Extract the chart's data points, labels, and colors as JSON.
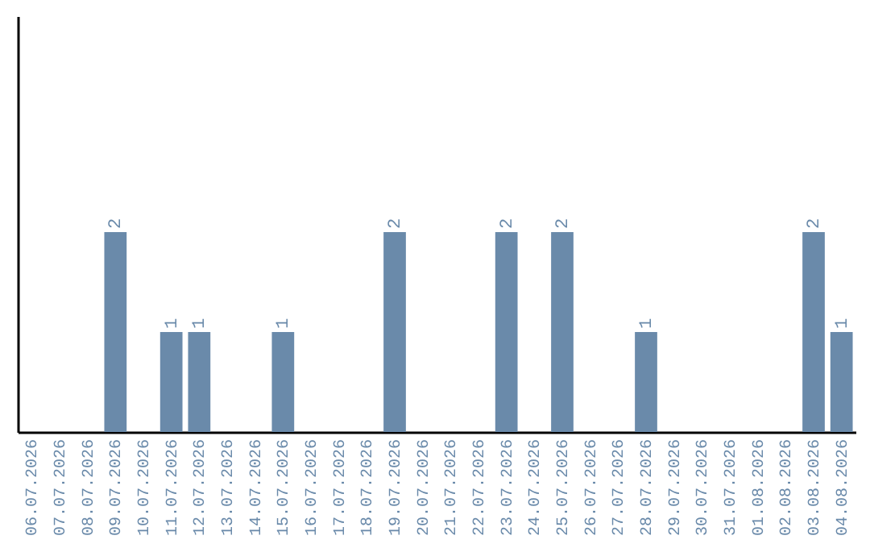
{
  "chart_data": {
    "type": "bar",
    "categories": [
      "06.07.2026",
      "07.07.2026",
      "08.07.2026",
      "09.07.2026",
      "10.07.2026",
      "11.07.2026",
      "12.07.2026",
      "13.07.2026",
      "14.07.2026",
      "15.07.2026",
      "16.07.2026",
      "17.07.2026",
      "18.07.2026",
      "19.07.2026",
      "20.07.2026",
      "21.07.2026",
      "22.07.2026",
      "23.07.2026",
      "24.07.2026",
      "25.07.2026",
      "26.07.2026",
      "27.07.2026",
      "28.07.2026",
      "29.07.2026",
      "30.07.2026",
      "31.07.2026",
      "01.08.2026",
      "02.08.2026",
      "03.08.2026",
      "04.08.2026"
    ],
    "values": [
      0,
      0,
      0,
      2,
      0,
      1,
      1,
      0,
      0,
      1,
      0,
      0,
      0,
      2,
      0,
      0,
      0,
      2,
      0,
      2,
      0,
      0,
      1,
      0,
      0,
      0,
      0,
      0,
      2,
      1
    ],
    "value_labels": [
      null,
      null,
      null,
      "2",
      null,
      "1",
      "1",
      null,
      null,
      "1",
      null,
      null,
      null,
      "2",
      null,
      null,
      null,
      "2",
      null,
      "2",
      null,
      null,
      "1",
      null,
      null,
      null,
      null,
      null,
      "2",
      "1"
    ],
    "color": "#6a8aaa",
    "grid": false,
    "tick_labels": "x"
  }
}
